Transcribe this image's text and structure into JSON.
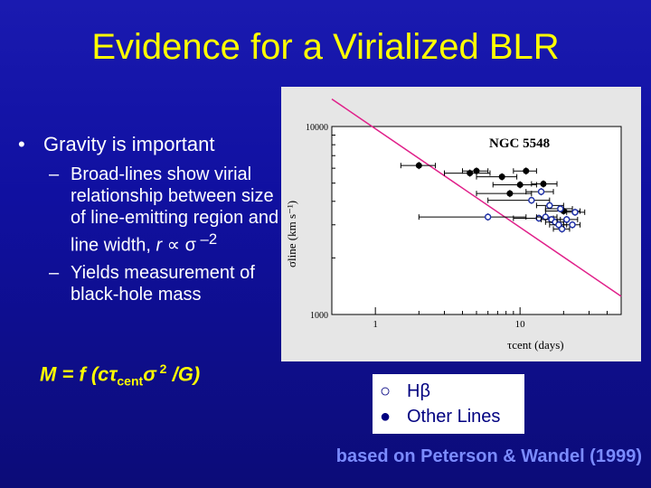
{
  "slide": {
    "title": "Evidence for a Virialized BLR",
    "bullet_1": "Gravity is important",
    "bullet_marker": "•",
    "sub_dash": "–",
    "sub_1_text": "Broad-lines show virial relationship between size of line-emitting region and line width, ",
    "sub_1_r": "r",
    "sub_1_prop": " ∝ σ",
    "sub_1_exp": " –2",
    "sub_2": "Yields measurement of black-hole mass",
    "formula_main": "M = f (cτ",
    "formula_sub": "cent",
    "formula_sigma": "σ",
    "formula_sup": " 2",
    "formula_end": " /G)",
    "legend_hb_symbol": "○",
    "legend_hb_label": "Hβ",
    "legend_other_symbol": "●",
    "legend_other_label": "Other Lines",
    "citation": "based on Peterson & Wandel (1999)"
  },
  "chart_data": {
    "type": "scatter",
    "title": "NGC 5548",
    "xlabel": "τcent (days)",
    "ylabel": "σline (km s⁻¹)",
    "x_scale": "log",
    "y_scale": "log",
    "xlim": [
      0.5,
      50
    ],
    "ylim": [
      1000,
      10000
    ],
    "x_ticks": [
      1,
      10
    ],
    "x_tick_labels": [
      "1",
      "10"
    ],
    "y_ticks": [
      1000,
      10000
    ],
    "y_tick_labels": [
      "1000",
      "10000"
    ],
    "fit_line": {
      "color": "#e0208a",
      "points": [
        [
          0.5,
          14000
        ],
        [
          50,
          1250
        ]
      ]
    },
    "series": [
      {
        "marker": "filled",
        "points": [
          {
            "x": 2.0,
            "y": 6200,
            "xerr": [
              1.5,
              2.6
            ]
          },
          {
            "x": 5.0,
            "y": 5800,
            "xerr": [
              4.0,
              6.0
            ]
          },
          {
            "x": 4.5,
            "y": 5650,
            "xerr": [
              3.0,
              6.2
            ]
          },
          {
            "x": 7.5,
            "y": 5400,
            "xerr": [
              5.0,
              9.5
            ]
          },
          {
            "x": 11.0,
            "y": 5800,
            "xerr": [
              9.0,
              13.0
            ]
          },
          {
            "x": 10.0,
            "y": 4900,
            "xerr": [
              6.5,
              13.0
            ]
          },
          {
            "x": 14.5,
            "y": 4950,
            "xerr": [
              12.0,
              18.0
            ]
          },
          {
            "x": 8.5,
            "y": 4400,
            "xerr": [
              5.0,
              12.0
            ]
          },
          {
            "x": 20.0,
            "y": 3550,
            "xerr": [
              15.0,
              26.0
            ]
          }
        ]
      },
      {
        "marker": "open",
        "points": [
          {
            "x": 14.0,
            "y": 4500,
            "xerr": [
              11.0,
              17.0
            ]
          },
          {
            "x": 12.0,
            "y": 4050,
            "xerr": [
              6.0,
              16.0
            ]
          },
          {
            "x": 16.0,
            "y": 3800,
            "xerr": [
              13.0,
              20.0
            ]
          },
          {
            "x": 19.0,
            "y": 3650,
            "xerr": [
              15.0,
              23.0
            ]
          },
          {
            "x": 6.0,
            "y": 3300,
            "xerr": [
              2.0,
              11.0
            ]
          },
          {
            "x": 13.5,
            "y": 3250,
            "xerr": [
              9.0,
              17.0
            ]
          },
          {
            "x": 15.0,
            "y": 3300,
            "xerr": [
              13.0,
              18.0
            ]
          },
          {
            "x": 16.5,
            "y": 3200,
            "xerr": [
              14.0,
              19.0
            ]
          },
          {
            "x": 17.5,
            "y": 3100,
            "xerr": [
              15.0,
              20.0
            ]
          },
          {
            "x": 18.5,
            "y": 3000,
            "xerr": [
              16.0,
              21.0
            ]
          },
          {
            "x": 21.0,
            "y": 3200,
            "xerr": [
              18.0,
              25.0
            ]
          },
          {
            "x": 19.5,
            "y": 2850,
            "xerr": [
              17.0,
              22.0
            ]
          },
          {
            "x": 23.0,
            "y": 3000,
            "xerr": [
              20.0,
              26.0
            ]
          },
          {
            "x": 24.0,
            "y": 3500,
            "xerr": [
              21.0,
              28.0
            ]
          }
        ]
      }
    ]
  }
}
